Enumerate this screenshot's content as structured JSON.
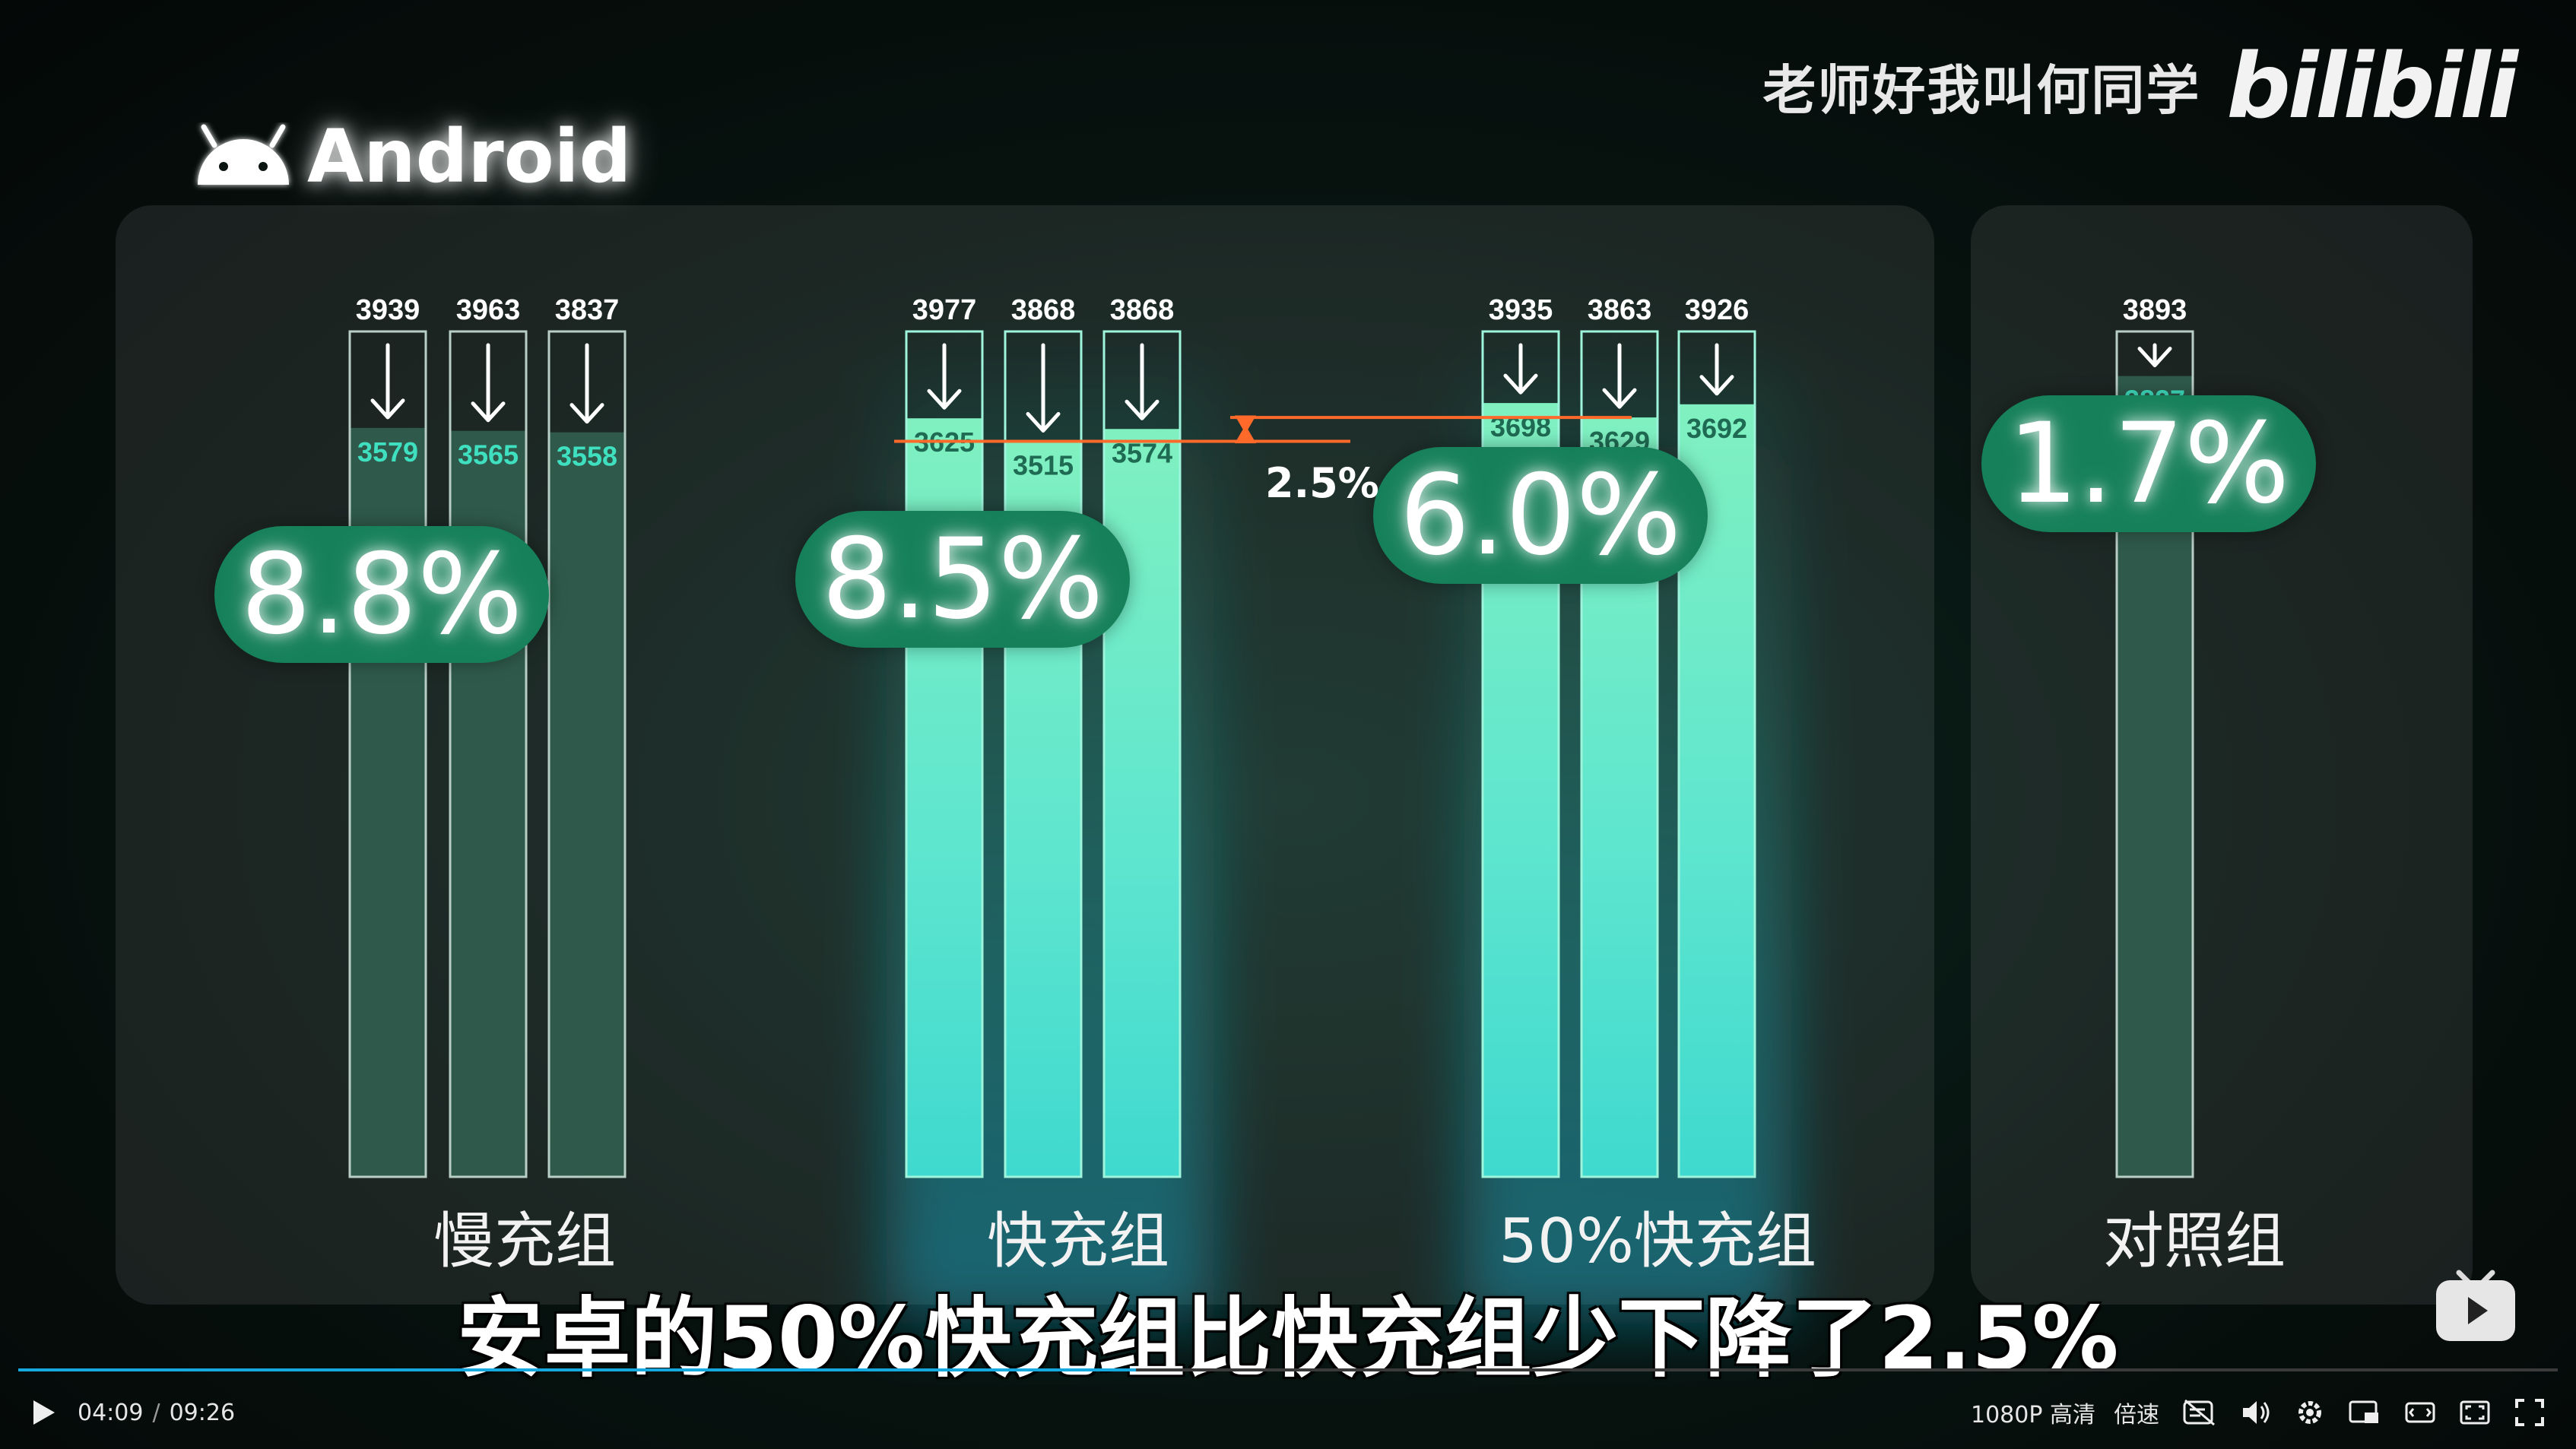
{
  "header": {
    "platform": "Android",
    "author": "老师好我叫何同学",
    "brand": "bilibili"
  },
  "chart_data": {
    "type": "bar",
    "groups": [
      {
        "name": "慢充组",
        "summary": "8.8%",
        "bars": [
          {
            "start": 3939,
            "end": 3579
          },
          {
            "start": 3963,
            "end": 3565
          },
          {
            "start": 3837,
            "end": 3558
          }
        ]
      },
      {
        "name": "快充组",
        "summary": "8.5%",
        "bars": [
          {
            "start": 3977,
            "end": 3625
          },
          {
            "start": 3868,
            "end": 3515
          },
          {
            "start": 3868,
            "end": 3574
          }
        ]
      },
      {
        "name": "50%快充组",
        "summary": "6.0%",
        "bars": [
          {
            "start": 3935,
            "end": 3698
          },
          {
            "start": 3863,
            "end": 3629
          },
          {
            "start": 3926,
            "end": 3692
          }
        ]
      },
      {
        "name": "对照组",
        "summary": "1.7%",
        "bars": [
          {
            "start": 3893,
            "end": 3827
          }
        ]
      }
    ],
    "comparison_label": "2.5%",
    "colors": {
      "slow": "#2f5a4b",
      "fast": "#6fe9c4",
      "control": "#2f5a4b",
      "pill": "#15805a",
      "guide": "#ff6a2b",
      "teal_text": "#3fe0c0"
    }
  },
  "subtitle": "安卓的50%快充组比快充组少下降了2.5%",
  "player": {
    "current_time": "04:09",
    "time_separator": "/",
    "duration": "09:26",
    "progress": 0.44,
    "quality": "1080P 高清",
    "speed": "倍速"
  }
}
